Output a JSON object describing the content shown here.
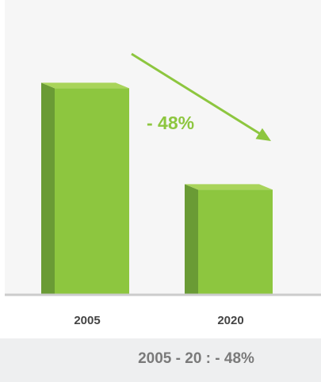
{
  "colors": {
    "bar_front": "#8dc63f",
    "bar_side": "#6a9b35",
    "bar_top": "#a9d45a",
    "arrow": "#8dc63f",
    "change_text": "#8dc63f",
    "baseline": "#cccccc"
  },
  "change_label": "- 48%",
  "summary_text": "2005 - 20 : - 48%",
  "chart_data": {
    "type": "bar",
    "categories": [
      "2005",
      "2020"
    ],
    "values": [
      100,
      52
    ],
    "title": "",
    "xlabel": "",
    "ylabel": "",
    "ylim": [
      0,
      105
    ],
    "grid": false,
    "annotation": "- 48%"
  }
}
